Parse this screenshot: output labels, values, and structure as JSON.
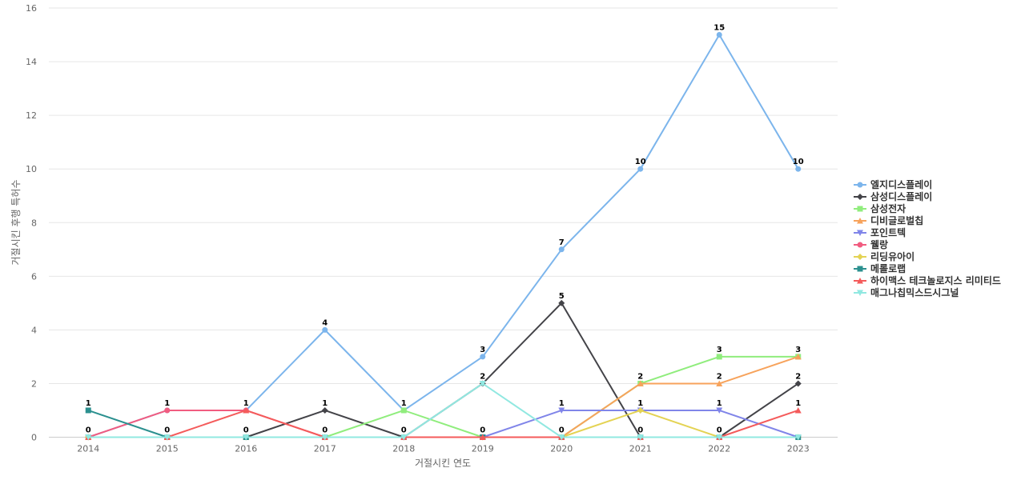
{
  "chart_data": {
    "type": "line",
    "xlabel": "거절시킨 연도",
    "ylabel": "거절시킨 후행 특허수",
    "ylim": [
      0,
      16
    ],
    "yticks": [
      0,
      2,
      4,
      6,
      8,
      10,
      12,
      14,
      16
    ],
    "categories": [
      "2014",
      "2015",
      "2016",
      "2017",
      "2018",
      "2019",
      "2020",
      "2021",
      "2022",
      "2023"
    ],
    "grid": true,
    "legend_position": "right",
    "series": [
      {
        "name": "엘지디스플레이",
        "color": "#7cb5ec",
        "marker": "circle",
        "values": [
          0,
          1,
          1,
          4,
          1,
          3,
          7,
          10,
          15,
          10
        ],
        "labels": [
          false,
          true,
          true,
          true,
          true,
          true,
          true,
          true,
          true,
          true
        ]
      },
      {
        "name": "삼성디스플레이",
        "color": "#434348",
        "marker": "diamond",
        "values": [
          0,
          0,
          0,
          1,
          0,
          2,
          5,
          0,
          0,
          2
        ],
        "labels": [
          false,
          false,
          false,
          true,
          false,
          false,
          true,
          false,
          false,
          true
        ]
      },
      {
        "name": "삼성전자",
        "color": "#90ed7d",
        "marker": "square",
        "values": [
          0,
          0,
          0,
          0,
          1,
          0,
          0,
          2,
          3,
          3
        ],
        "labels": [
          false,
          false,
          false,
          false,
          false,
          false,
          false,
          false,
          true,
          true
        ]
      },
      {
        "name": "디비글로벌칩",
        "color": "#f7a35c",
        "marker": "triangle",
        "values": [
          0,
          0,
          0,
          0,
          0,
          0,
          0,
          2,
          2,
          3
        ],
        "labels": [
          false,
          false,
          false,
          false,
          false,
          false,
          false,
          true,
          true,
          false
        ]
      },
      {
        "name": "포인트텍",
        "color": "#8085e9",
        "marker": "triangle-down",
        "values": [
          0,
          0,
          0,
          0,
          0,
          0,
          1,
          1,
          1,
          0
        ],
        "labels": [
          false,
          false,
          false,
          false,
          false,
          false,
          true,
          false,
          true,
          false
        ]
      },
      {
        "name": "웰랑",
        "color": "#f15c80",
        "marker": "circle",
        "values": [
          0,
          1,
          1,
          0,
          0,
          0,
          0,
          0,
          0,
          0
        ],
        "labels": [
          false,
          false,
          false,
          false,
          false,
          false,
          false,
          false,
          false,
          false
        ]
      },
      {
        "name": "리딩유아이",
        "color": "#e4d354",
        "marker": "diamond",
        "values": [
          0,
          0,
          0,
          0,
          0,
          0,
          0,
          1,
          0,
          0
        ],
        "labels": [
          false,
          false,
          false,
          false,
          false,
          false,
          false,
          true,
          false,
          false
        ]
      },
      {
        "name": "메롤로랩",
        "color": "#2b908f",
        "marker": "square",
        "values": [
          1,
          0,
          0,
          0,
          0,
          0,
          0,
          0,
          0,
          0
        ],
        "labels": [
          true,
          false,
          true,
          false,
          false,
          false,
          false,
          false,
          false,
          false
        ]
      },
      {
        "name": "하이맥스 테크놀로지스 리미티드",
        "color": "#f45b5b",
        "marker": "triangle",
        "values": [
          0,
          0,
          1,
          0,
          0,
          0,
          0,
          0,
          0,
          1
        ],
        "labels": [
          true,
          false,
          false,
          true,
          true,
          true,
          true,
          true,
          true,
          true
        ]
      },
      {
        "name": "매그나칩믹스드시그널",
        "color": "#91e8e1",
        "marker": "triangle-down",
        "values": [
          0,
          0,
          0,
          0,
          0,
          2,
          0,
          0,
          0,
          0
        ],
        "labels": [
          false,
          true,
          false,
          false,
          false,
          true,
          false,
          false,
          false,
          false
        ]
      }
    ]
  }
}
